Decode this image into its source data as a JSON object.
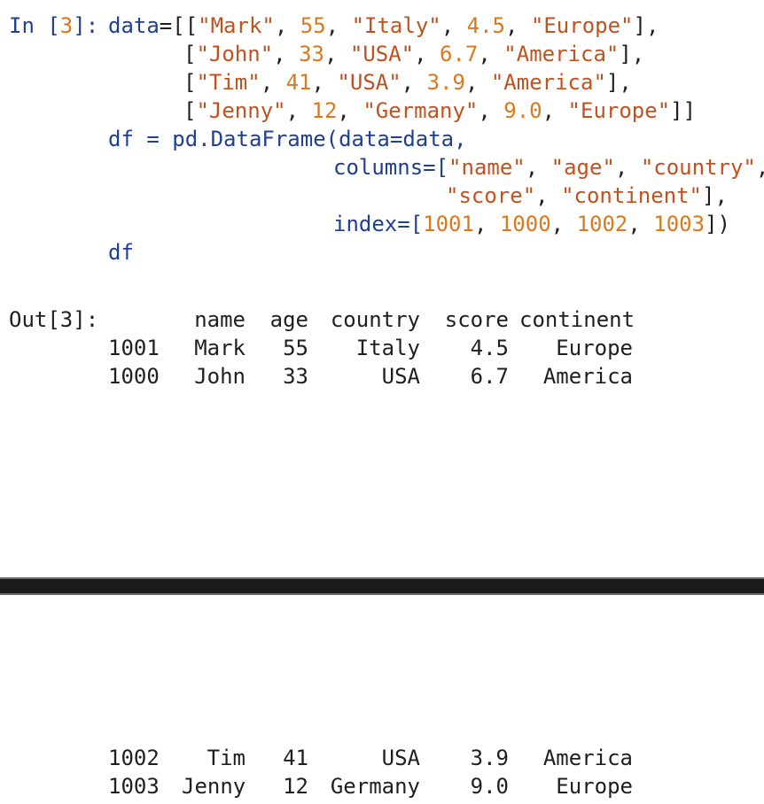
{
  "input_cell": {
    "prompt_prefix": "In [",
    "prompt_number": "3",
    "prompt_suffix": "]:",
    "code": {
      "data_var": "data",
      "rows": [
        [
          "\"Mark\"",
          "55",
          "\"Italy\"",
          "4.5",
          "\"Europe\""
        ],
        [
          "\"John\"",
          "33",
          "\"USA\"",
          "6.7",
          "\"America\""
        ],
        [
          "\"Tim\"",
          "41",
          "\"USA\"",
          "3.9",
          "\"America\""
        ],
        [
          "\"Jenny\"",
          "12",
          "\"Germany\"",
          "9.0",
          "\"Europe\""
        ]
      ],
      "df_line": "df = pd.DataFrame(data=data,",
      "columns_kw": "columns=[",
      "columns_a": [
        "\"name\"",
        "\"age\"",
        "\"country\""
      ],
      "columns_b": [
        "\"score\"",
        "\"continent\""
      ],
      "index_kw": "index=[",
      "index_values": [
        "1001",
        "1000",
        "1002",
        "1003"
      ],
      "last_line": "df"
    }
  },
  "output_cell": {
    "prompt": "Out[3]:",
    "headers": [
      "name",
      "age",
      "country",
      "score",
      "continent"
    ],
    "rows_top": [
      {
        "index": "1001",
        "name": "Mark",
        "age": "55",
        "country": "Italy",
        "score": "4.5",
        "continent": "Europe"
      },
      {
        "index": "1000",
        "name": "John",
        "age": "33",
        "country": "USA",
        "score": "6.7",
        "continent": "America"
      }
    ],
    "rows_bottom": [
      {
        "index": "1002",
        "name": "Tim",
        "age": "41",
        "country": "USA",
        "score": "3.9",
        "continent": "America"
      },
      {
        "index": "1003",
        "name": "Jenny",
        "age": "12",
        "country": "Germany",
        "score": "9.0",
        "continent": "Europe"
      }
    ]
  }
}
